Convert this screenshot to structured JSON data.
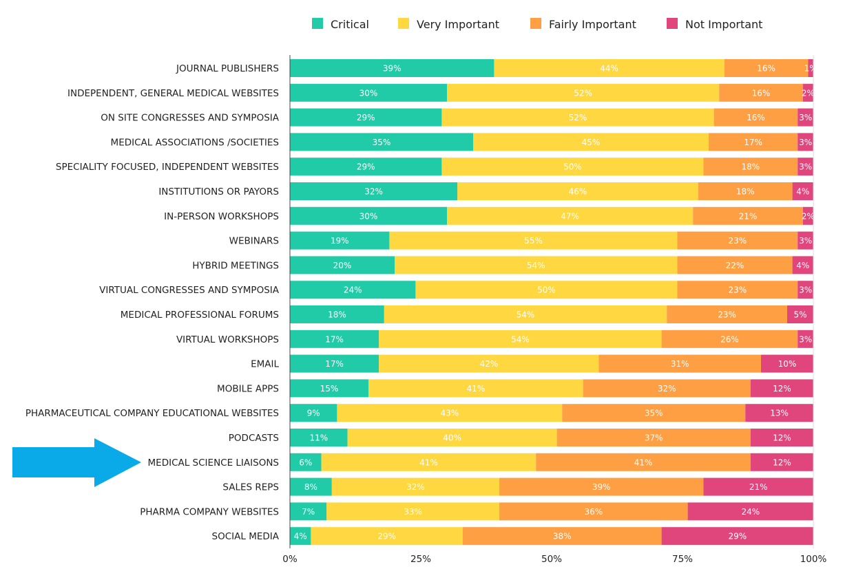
{
  "chart_data": {
    "type": "bar",
    "orientation": "horizontal",
    "stacked": true,
    "categories": [
      "JOURNAL PUBLISHERS",
      "INDEPENDENT, GENERAL MEDICAL WEBSITES",
      "ON SITE CONGRESSES AND SYMPOSIA",
      "MEDICAL ASSOCIATIONS /SOCIETIES",
      "SPECIALITY FOCUSED, INDEPENDENT WEBSITES",
      "INSTITUTIONS OR PAYORS",
      "IN-PERSON WORKSHOPS",
      "WEBINARS",
      "HYBRID MEETINGS",
      "VIRTUAL CONGRESSES AND SYMPOSIA",
      "MEDICAL PROFESSIONAL FORUMS",
      "VIRTUAL WORKSHOPS",
      "EMAIL",
      "MOBILE APPS",
      "PHARMACEUTICAL COMPANY EDUCATIONAL WEBSITES",
      "PODCASTS",
      "MEDICAL SCIENCE LIAISONS",
      "SALES REPS",
      "PHARMA COMPANY WEBSITES",
      "SOCIAL MEDIA"
    ],
    "series": [
      {
        "name": "Critical",
        "color": "#22CBA7",
        "values": [
          39,
          30,
          29,
          35,
          29,
          32,
          30,
          19,
          20,
          24,
          18,
          17,
          17,
          15,
          9,
          11,
          6,
          8,
          7,
          4
        ]
      },
      {
        "name": "Very Important",
        "color": "#FFD740",
        "values": [
          44,
          52,
          52,
          45,
          50,
          46,
          47,
          55,
          54,
          50,
          54,
          54,
          42,
          41,
          43,
          40,
          41,
          32,
          33,
          29
        ]
      },
      {
        "name": "Fairly Important",
        "color": "#FF9F43",
        "values": [
          16,
          16,
          16,
          17,
          18,
          18,
          21,
          23,
          22,
          23,
          23,
          26,
          31,
          32,
          35,
          37,
          41,
          39,
          36,
          38
        ]
      },
      {
        "name": "Not Important",
        "color": "#E0457B",
        "values": [
          1,
          2,
          3,
          3,
          3,
          4,
          2,
          3,
          4,
          3,
          5,
          3,
          10,
          12,
          13,
          12,
          12,
          21,
          24,
          29
        ]
      }
    ],
    "xlim": [
      0,
      100
    ],
    "xticks": [
      "0%",
      "25%",
      "50%",
      "75%",
      "100%"
    ],
    "legend_position": "top",
    "grid": false,
    "highlight": {
      "category": "MEDICAL SCIENCE LIAISONS",
      "marker": "arrow",
      "color": "#0AA9E8"
    }
  }
}
